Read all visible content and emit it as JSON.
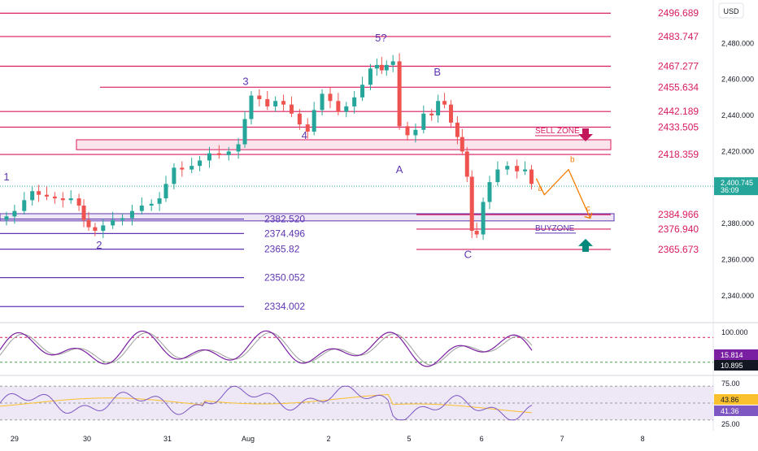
{
  "currency": "USD",
  "colors": {
    "up": "#26a69a",
    "down": "#ef5350",
    "resistance": "#d81b60",
    "support": "#5e35b1",
    "wave_label": "#5e35b1",
    "projection": "#f57c00",
    "sell_zone_fill": "#fce4ec",
    "buy_zone_fill": "#ede7f6",
    "stoch_k": "#7b1fa2",
    "stoch_d": "#9e9e9e",
    "rsi": "#7e57c2",
    "rsi_ma": "#fbc02d",
    "rsi_band": "#ede7f6",
    "sell_arrow": "#c2185b",
    "buy_arrow": "#00897b",
    "current_price_line": "#26a69a"
  },
  "price_axis": {
    "ticks": [
      "2,480.000",
      "2,460.000",
      "2,440.000",
      "2,420.000",
      "2,380.000",
      "2,360.000",
      "2,340.000"
    ],
    "tick_values": [
      2480,
      2460,
      2440,
      2420,
      2380,
      2360,
      2340
    ],
    "range": [
      2326,
      2504
    ],
    "current_price": "2,400.745",
    "current_price_value": 2400.745,
    "countdown": "36:09"
  },
  "time_axis": {
    "labels": [
      "29",
      "30",
      "31",
      "Aug",
      "2",
      "5",
      "6",
      "7",
      "8"
    ],
    "positions_day_index": [
      0.1,
      1.0,
      2.0,
      3.0,
      4.0,
      5.0,
      5.9,
      6.9,
      7.9
    ]
  },
  "resistance_levels": [
    {
      "label": "2496.689",
      "value": 2496.689,
      "from_day": 0.0
    },
    {
      "label": "2483.747",
      "value": 2483.747,
      "from_day": 0.0
    },
    {
      "label": "2467.277",
      "value": 2467.277,
      "from_day": 0.0
    },
    {
      "label": "2455.634",
      "value": 2455.634,
      "from_day": 1.2
    },
    {
      "label": "2442.189",
      "value": 2442.189,
      "from_day": 0.0
    },
    {
      "label": "2433.505",
      "value": 2433.505,
      "from_day": 0.0
    },
    {
      "label": "2418.359",
      "value": 2418.359,
      "from_day": 0.0
    },
    {
      "label": "2384.966",
      "value": 2384.966,
      "from_day": 5.0
    },
    {
      "label": "2376.940",
      "value": 2376.94,
      "from_day": 5.0
    },
    {
      "label": "2365.673",
      "value": 2365.673,
      "from_day": 5.0
    }
  ],
  "support_levels": [
    {
      "label": "2382.520",
      "value": 2382.52
    },
    {
      "label": "2374.496",
      "value": 2374.496
    },
    {
      "label": "2365.82",
      "value": 2365.82
    },
    {
      "label": "2350.052",
      "value": 2350.052
    },
    {
      "label": "2334.002",
      "value": 2334.002
    }
  ],
  "zones": {
    "sell_zone": {
      "label": "SELL ZONE",
      "low": 2421,
      "high": 2426.5
    },
    "buy_zone": {
      "label": "BUYZONE",
      "low": 2381.5,
      "high": 2385.5
    }
  },
  "wave_labels": [
    {
      "text": "1",
      "day": 0.0,
      "price": 2404
    },
    {
      "text": "2",
      "day": 1.15,
      "price": 2366
    },
    {
      "text": "3",
      "day": 2.97,
      "price": 2457
    },
    {
      "text": "4",
      "day": 3.7,
      "price": 2427
    },
    {
      "text": "5?",
      "day": 4.65,
      "price": 2481
    },
    {
      "text": "A",
      "day": 4.88,
      "price": 2408
    },
    {
      "text": "B",
      "day": 5.35,
      "price": 2462
    },
    {
      "text": "C",
      "day": 5.73,
      "price": 2361
    }
  ],
  "projection": {
    "labels": [
      "a",
      "b",
      "c"
    ],
    "path": [
      {
        "day": 6.58,
        "price": 2405
      },
      {
        "day": 6.68,
        "price": 2396
      },
      {
        "day": 6.98,
        "price": 2410
      },
      {
        "day": 7.25,
        "price": 2383
      }
    ]
  },
  "chart_data": {
    "type": "candlestick",
    "x_unit": "trading day index (0 = Jul 29)",
    "y_range": [
      2326,
      2504
    ],
    "close_path": [
      [
        0.0,
        2384
      ],
      [
        0.1,
        2387
      ],
      [
        0.22,
        2393
      ],
      [
        0.32,
        2398
      ],
      [
        0.4,
        2396
      ],
      [
        0.5,
        2395
      ],
      [
        0.6,
        2394
      ],
      [
        0.7,
        2393
      ],
      [
        0.8,
        2394
      ],
      [
        0.9,
        2390
      ],
      [
        0.96,
        2382
      ],
      [
        1.02,
        2378
      ],
      [
        1.1,
        2376
      ],
      [
        1.2,
        2379
      ],
      [
        1.32,
        2382
      ],
      [
        1.44,
        2383
      ],
      [
        1.56,
        2387
      ],
      [
        1.68,
        2390
      ],
      [
        1.8,
        2391
      ],
      [
        1.9,
        2394
      ],
      [
        1.98,
        2402
      ],
      [
        2.08,
        2411
      ],
      [
        2.18,
        2410
      ],
      [
        2.3,
        2412
      ],
      [
        2.4,
        2415
      ],
      [
        2.52,
        2419
      ],
      [
        2.64,
        2418
      ],
      [
        2.76,
        2420
      ],
      [
        2.88,
        2424
      ],
      [
        2.96,
        2438
      ],
      [
        3.04,
        2451
      ],
      [
        3.14,
        2449
      ],
      [
        3.24,
        2445
      ],
      [
        3.34,
        2448
      ],
      [
        3.44,
        2446
      ],
      [
        3.54,
        2441
      ],
      [
        3.64,
        2435
      ],
      [
        3.74,
        2431
      ],
      [
        3.82,
        2443
      ],
      [
        3.92,
        2452
      ],
      [
        4.02,
        2448
      ],
      [
        4.12,
        2442
      ],
      [
        4.22,
        2445
      ],
      [
        4.32,
        2450
      ],
      [
        4.42,
        2457
      ],
      [
        4.52,
        2466
      ],
      [
        4.6,
        2468
      ],
      [
        4.66,
        2465
      ],
      [
        4.72,
        2468
      ],
      [
        4.8,
        2470
      ],
      [
        4.88,
        2434
      ],
      [
        4.98,
        2429
      ],
      [
        5.08,
        2432
      ],
      [
        5.18,
        2441
      ],
      [
        5.28,
        2440
      ],
      [
        5.36,
        2448
      ],
      [
        5.44,
        2446
      ],
      [
        5.52,
        2436
      ],
      [
        5.6,
        2428
      ],
      [
        5.66,
        2420
      ],
      [
        5.72,
        2406
      ],
      [
        5.78,
        2376
      ],
      [
        5.84,
        2374
      ],
      [
        5.92,
        2392
      ],
      [
        6.0,
        2403
      ],
      [
        6.1,
        2410
      ],
      [
        6.22,
        2412
      ],
      [
        6.34,
        2409
      ],
      [
        6.44,
        2410
      ],
      [
        6.52,
        2402
      ]
    ],
    "ticks_y": [
      2480,
      2460,
      2440,
      2420,
      2380,
      2360,
      2340
    ]
  },
  "stochastic": {
    "levels": [
      "100.000",
      "15.814",
      "10.895"
    ],
    "upper_band": 80,
    "lower_band": 20,
    "k": 15.814,
    "d": 10.895
  },
  "rsi": {
    "levels": [
      "75.00",
      "43.86",
      "41.36",
      "25.00"
    ],
    "value": 41.36,
    "ma": 43.86,
    "upper": 70,
    "lower": 30
  }
}
